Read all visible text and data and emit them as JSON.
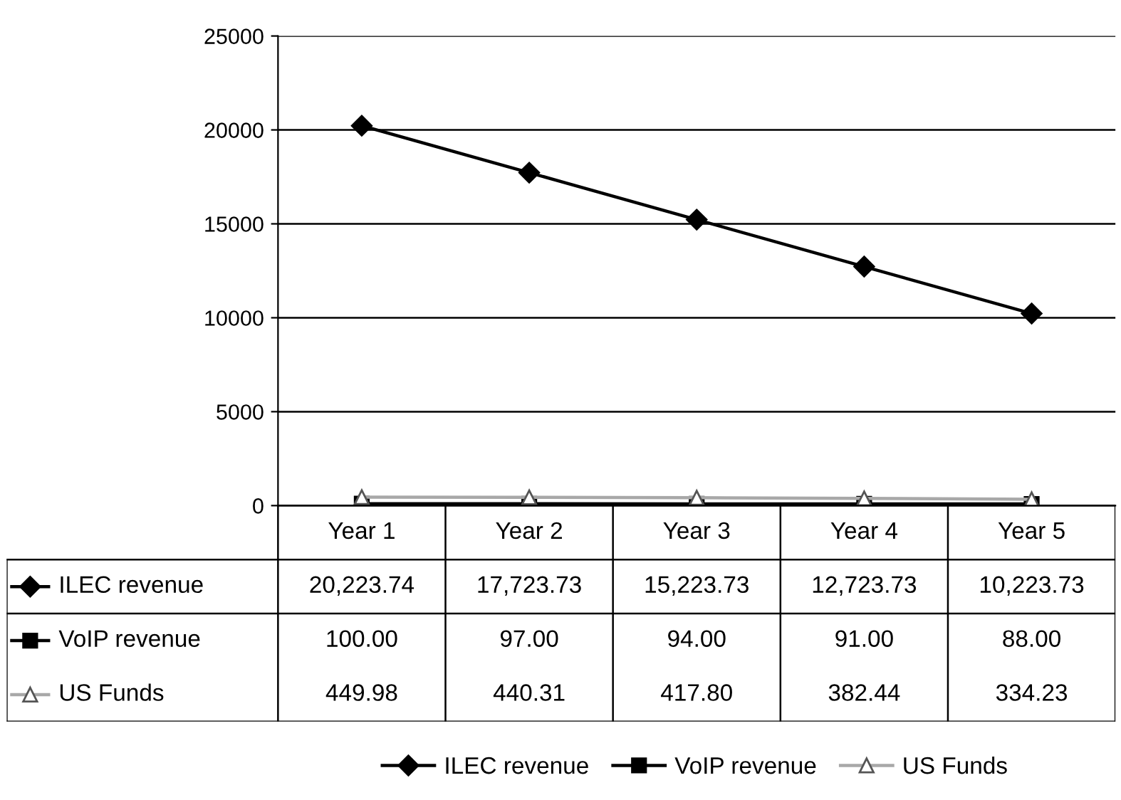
{
  "chart_data": {
    "type": "line",
    "categories": [
      "Year 1",
      "Year 2",
      "Year 3",
      "Year 4",
      "Year 5"
    ],
    "series": [
      {
        "name": "ILEC revenue",
        "color": "#000000",
        "marker": "diamond",
        "values": [
          20223.74,
          17723.73,
          15223.73,
          12723.73,
          10223.73
        ],
        "value_labels": [
          "20,223.74",
          "17,723.73",
          "15,223.73",
          "12,723.73",
          "10,223.73"
        ]
      },
      {
        "name": "VoIP revenue",
        "color": "#000000",
        "marker": "square",
        "values": [
          100.0,
          97.0,
          94.0,
          91.0,
          88.0
        ],
        "value_labels": [
          "100.00",
          "97.00",
          "94.00",
          "91.00",
          "88.00"
        ]
      },
      {
        "name": "US Funds",
        "color": "#a8a8a8",
        "marker": "triangle",
        "values": [
          449.98,
          440.31,
          417.8,
          382.44,
          334.23
        ],
        "value_labels": [
          "449.98",
          "440.31",
          "417.80",
          "382.44",
          "334.23"
        ]
      }
    ],
    "ylim": [
      0,
      25000
    ],
    "yticks": [
      0,
      5000,
      10000,
      15000,
      20000,
      25000
    ],
    "grid": "y",
    "legend": "bottom",
    "line_style": "solid"
  }
}
